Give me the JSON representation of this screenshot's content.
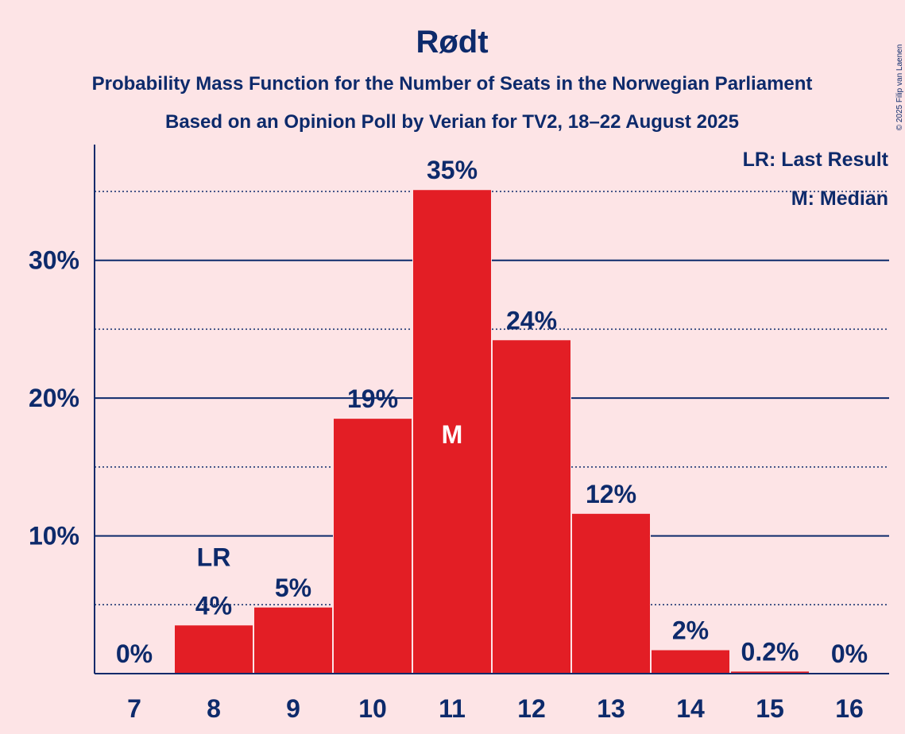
{
  "chart_data": {
    "type": "bar",
    "title": "Rødt",
    "subtitle_1": "Probability Mass Function for the Number of Seats in the Norwegian Parliament",
    "subtitle_2": "Based on an Opinion Poll by Verian for TV2, 18–22 August 2025",
    "copyright": "© 2025 Filip van Laenen",
    "legend": [
      "LR: Last Result",
      "M: Median"
    ],
    "legend_position": "top-right",
    "categories": [
      "7",
      "8",
      "9",
      "10",
      "11",
      "12",
      "13",
      "14",
      "15",
      "16"
    ],
    "values": [
      0,
      3.5,
      4.8,
      18.5,
      35.1,
      24.2,
      11.6,
      1.7,
      0.15,
      0
    ],
    "data_labels": [
      "0%",
      "4%",
      "5%",
      "19%",
      "35%",
      "24%",
      "12%",
      "2%",
      "0.2%",
      "0%"
    ],
    "last_result_category": "8",
    "last_result_label": "LR",
    "median_category": "11",
    "median_label": "M",
    "ylim": [
      0,
      38.4
    ],
    "yticks": [
      10,
      20,
      30
    ],
    "ytick_labels": [
      "10%",
      "20%",
      "30%"
    ],
    "minor_gridlines": [
      5,
      15,
      25,
      35
    ],
    "colors": {
      "bar": "#e31e25",
      "text": "#0d2a6b",
      "background": "#fde4e6"
    }
  }
}
